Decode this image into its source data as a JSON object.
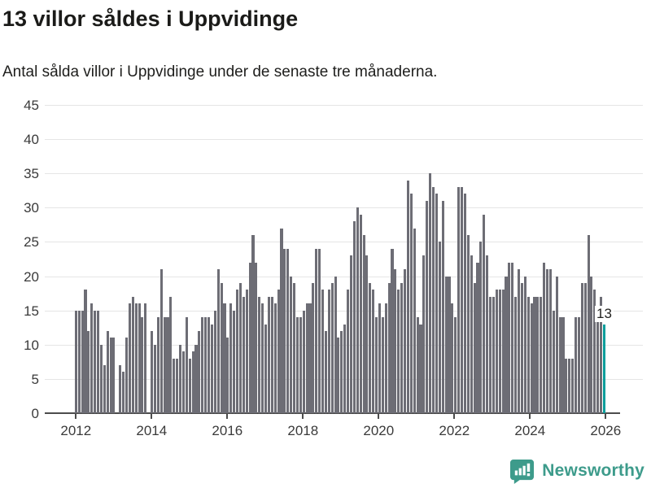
{
  "header": {
    "title": "13 villor såldes i Uppvidinge",
    "subtitle": "Antal sålda villor i Uppvidinge under de senaste tre månaderna."
  },
  "annotation": {
    "label": "13"
  },
  "footer": {
    "brand": "Newsworthy",
    "logo_icon": "bar-chart-speech-bubble-icon"
  },
  "colors": {
    "bar": "#6d6d75",
    "highlight": "#0a9e9c",
    "grid": "#e5e5e5",
    "axis_line": "#4c4c4c",
    "axis_text": "#3a3a3a",
    "title_text": "#1b1b19",
    "brand": "#3d9b8b"
  },
  "chart_data": {
    "type": "bar",
    "title": "13 villor såldes i Uppvidinge",
    "subtitle": "Antal sålda villor i Uppvidinge under de senaste tre månaderna.",
    "unit": "sålda villor per 3 månader",
    "x_start": "2012-01",
    "x_end": "2025-12",
    "x_tick_labels": [
      "2012",
      "2014",
      "2016",
      "2018",
      "2020",
      "2022",
      "2024",
      "2026"
    ],
    "y_ticks": [
      0,
      5,
      10,
      15,
      20,
      25,
      30,
      35,
      40,
      45
    ],
    "ylim": [
      0,
      45
    ],
    "grid": true,
    "legend": false,
    "highlight_index": 167,
    "highlight_value": 13,
    "values": [
      15,
      15,
      15,
      18,
      12,
      16,
      15,
      15,
      10,
      7,
      12,
      11,
      11,
      0,
      7,
      6,
      11,
      16,
      17,
      16,
      16,
      14,
      16,
      0,
      12,
      10,
      14,
      21,
      14,
      14,
      17,
      8,
      8,
      10,
      9,
      14,
      8,
      9,
      10,
      12,
      14,
      14,
      14,
      13,
      15,
      21,
      19,
      16,
      11,
      16,
      15,
      18,
      19,
      17,
      18,
      22,
      26,
      22,
      17,
      16,
      13,
      17,
      17,
      16,
      18,
      27,
      24,
      24,
      20,
      19,
      14,
      14,
      15,
      16,
      16,
      19,
      24,
      24,
      18,
      12,
      18,
      19,
      20,
      11,
      12,
      13,
      18,
      23,
      28,
      30,
      29,
      26,
      23,
      19,
      18,
      14,
      16,
      14,
      16,
      19,
      24,
      21,
      18,
      19,
      21,
      34,
      32,
      27,
      14,
      13,
      23,
      31,
      35,
      33,
      32,
      25,
      31,
      20,
      20,
      16,
      14,
      33,
      33,
      32,
      26,
      23,
      19,
      22,
      25,
      29,
      23,
      17,
      17,
      18,
      18,
      18,
      20,
      22,
      22,
      17,
      21,
      19,
      20,
      17,
      16,
      17,
      17,
      17,
      22,
      21,
      21,
      15,
      20,
      14,
      14,
      8,
      8,
      8,
      14,
      14,
      19,
      19,
      26,
      20,
      18,
      14,
      17,
      13
    ]
  }
}
